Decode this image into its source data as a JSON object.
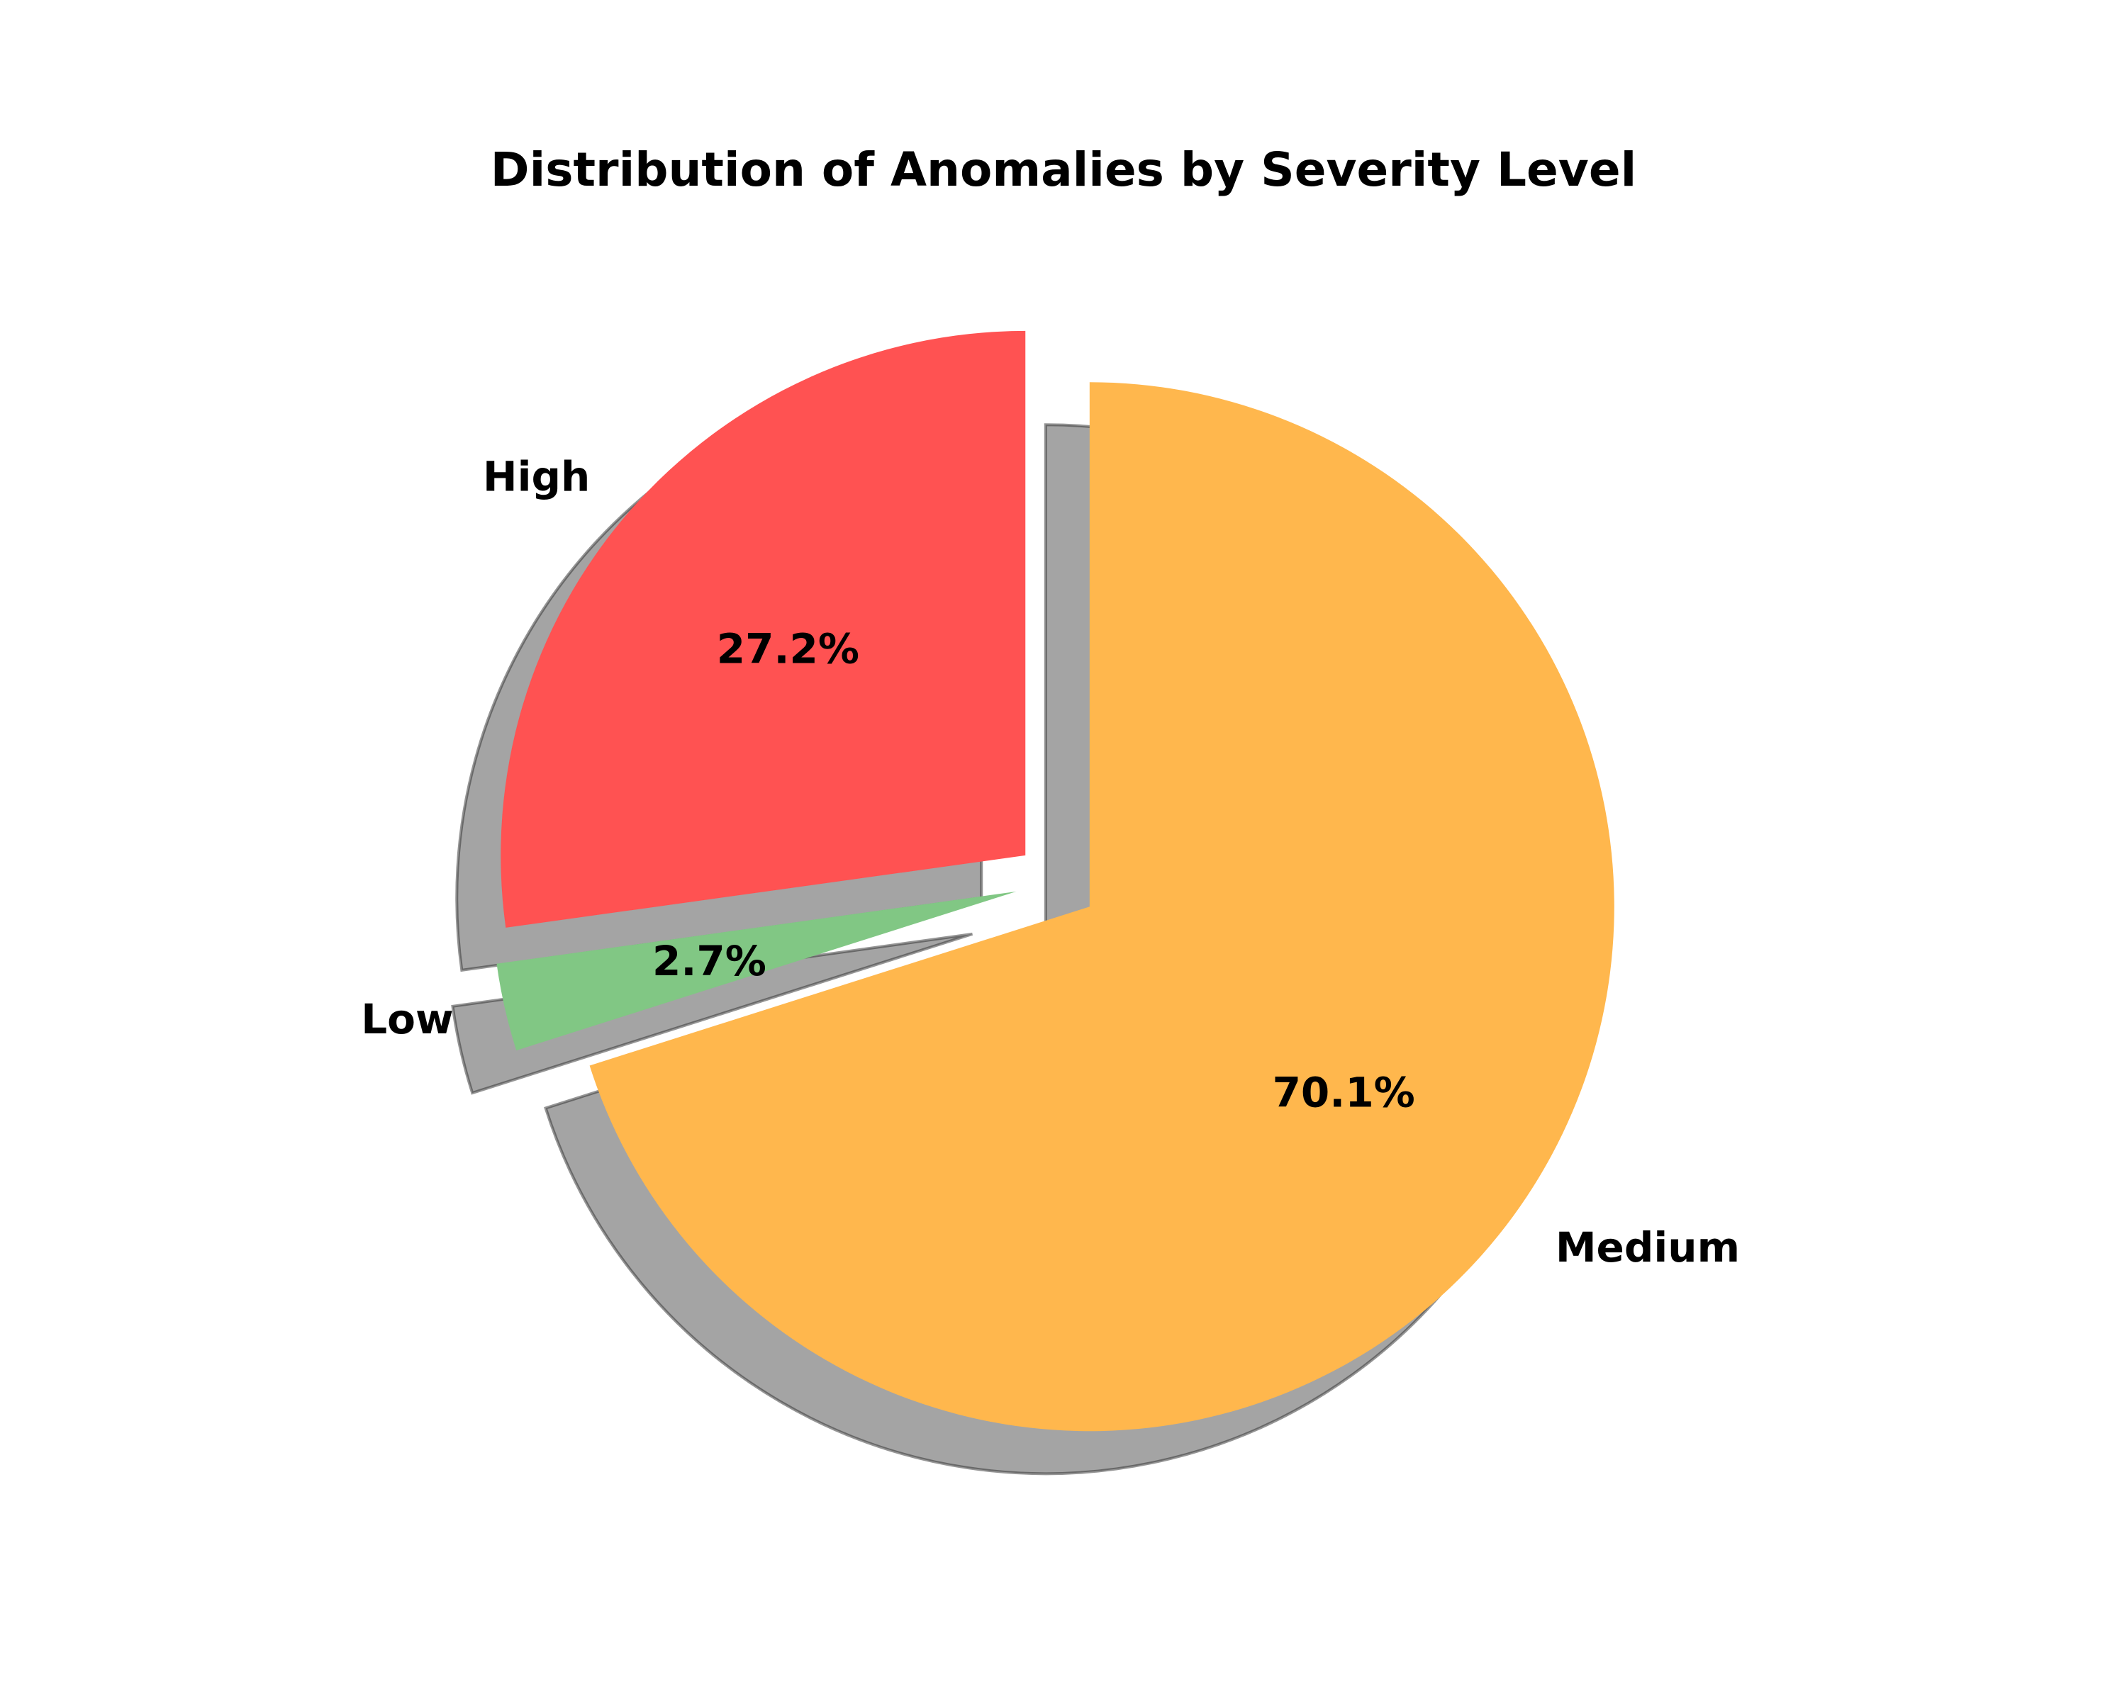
{
  "chart_data": {
    "type": "pie",
    "title": "Distribution of Anomalies by Severity Level",
    "slices": [
      {
        "label": "High",
        "value": 27.2,
        "pct_label": "27.2%",
        "color": "#ff5252",
        "exploded": true
      },
      {
        "label": "Low",
        "value": 2.7,
        "pct_label": "2.7%",
        "color": "#81c784",
        "exploded": true
      },
      {
        "label": "Medium",
        "value": 70.1,
        "pct_label": "70.1%",
        "color": "#ffb74d",
        "exploded": true
      }
    ],
    "start_angle_deg": 90,
    "direction": "counterclockwise",
    "shadow": true
  }
}
